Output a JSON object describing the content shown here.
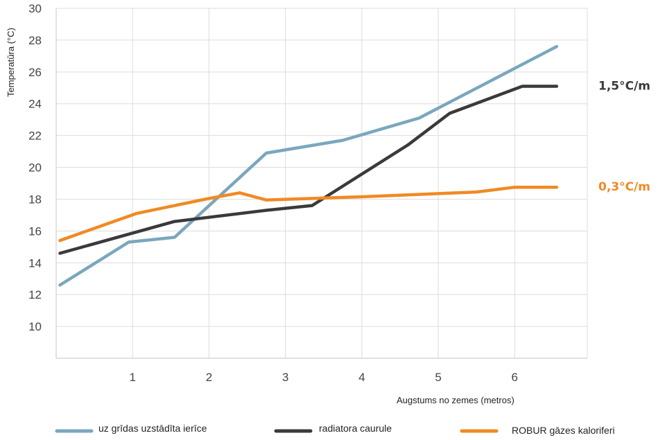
{
  "chart_data": {
    "type": "line",
    "title": "",
    "xlabel": "Augstums no zemes (metros)",
    "ylabel": "Temperatūra (°C)",
    "xlim": [
      0,
      6.95
    ],
    "ylim": [
      8,
      30
    ],
    "xticks": [
      1,
      2,
      3,
      4,
      5,
      6
    ],
    "yticks": [
      10,
      12,
      14,
      16,
      18,
      20,
      22,
      24,
      26,
      28,
      30
    ],
    "grid": true,
    "legend_position": "bottom",
    "series": [
      {
        "name": "uz grīdas uzstādīta ierīce",
        "color": "#7aa7bd",
        "points": [
          [
            0.05,
            12.6
          ],
          [
            0.95,
            15.3
          ],
          [
            1.55,
            15.6
          ],
          [
            2.75,
            20.9
          ],
          [
            3.75,
            21.7
          ],
          [
            4.75,
            23.1
          ],
          [
            6.55,
            27.6
          ]
        ]
      },
      {
        "name": "radiatora caurule",
        "color": "#3a3a3a",
        "points": [
          [
            0.05,
            14.6
          ],
          [
            1.55,
            16.6
          ],
          [
            2.75,
            17.3
          ],
          [
            3.35,
            17.6
          ],
          [
            4.6,
            21.4
          ],
          [
            5.15,
            23.4
          ],
          [
            6.1,
            25.1
          ],
          [
            6.55,
            25.1
          ]
        ]
      },
      {
        "name": "ROBUR gāzes kaloriferi",
        "color": "#f08a24",
        "points": [
          [
            0.05,
            15.4
          ],
          [
            1.05,
            17.1
          ],
          [
            1.95,
            18.0
          ],
          [
            2.4,
            18.4
          ],
          [
            2.75,
            17.95
          ],
          [
            4.0,
            18.15
          ],
          [
            5.5,
            18.45
          ],
          [
            6.0,
            18.75
          ],
          [
            6.55,
            18.75
          ]
        ]
      }
    ],
    "annotations": [
      {
        "text": "1,5°C/m",
        "y": 25.1,
        "color": "#3a3a3a"
      },
      {
        "text": "0,3°C/m",
        "y": 18.75,
        "color": "#f08a24"
      }
    ]
  }
}
